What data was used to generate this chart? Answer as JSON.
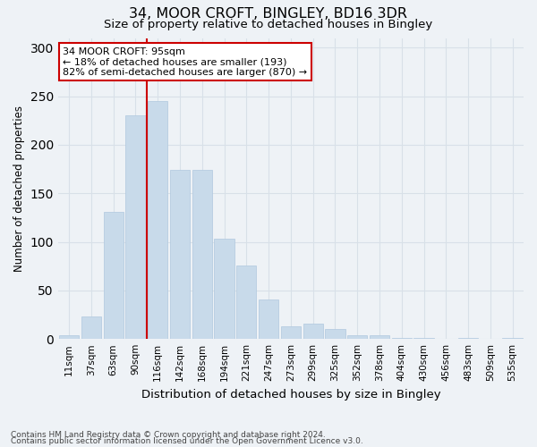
{
  "title1": "34, MOOR CROFT, BINGLEY, BD16 3DR",
  "title2": "Size of property relative to detached houses in Bingley",
  "xlabel": "Distribution of detached houses by size in Bingley",
  "ylabel": "Number of detached properties",
  "bar_color": "#c8daea",
  "bar_edge_color": "#b0c8de",
  "categories": [
    "11sqm",
    "37sqm",
    "63sqm",
    "90sqm",
    "116sqm",
    "142sqm",
    "168sqm",
    "194sqm",
    "221sqm",
    "247sqm",
    "273sqm",
    "299sqm",
    "325sqm",
    "352sqm",
    "378sqm",
    "404sqm",
    "430sqm",
    "456sqm",
    "483sqm",
    "509sqm",
    "535sqm"
  ],
  "values": [
    4,
    23,
    131,
    230,
    245,
    174,
    174,
    103,
    76,
    41,
    13,
    16,
    10,
    4,
    4,
    1,
    1,
    0,
    1,
    0,
    1
  ],
  "vline_x": 3.5,
  "vline_color": "#cc0000",
  "annotation_line1": "34 MOOR CROFT: 95sqm",
  "annotation_line2": "← 18% of detached houses are smaller (193)",
  "annotation_line3": "82% of semi-detached houses are larger (870) →",
  "annotation_box_color": "#ffffff",
  "annotation_border_color": "#cc0000",
  "ylim": [
    0,
    310
  ],
  "yticks": [
    0,
    50,
    100,
    150,
    200,
    250,
    300
  ],
  "footer1": "Contains HM Land Registry data © Crown copyright and database right 2024.",
  "footer2": "Contains public sector information licensed under the Open Government Licence v3.0.",
  "grid_color": "#d8e0e8",
  "bg_color": "#eef2f6"
}
